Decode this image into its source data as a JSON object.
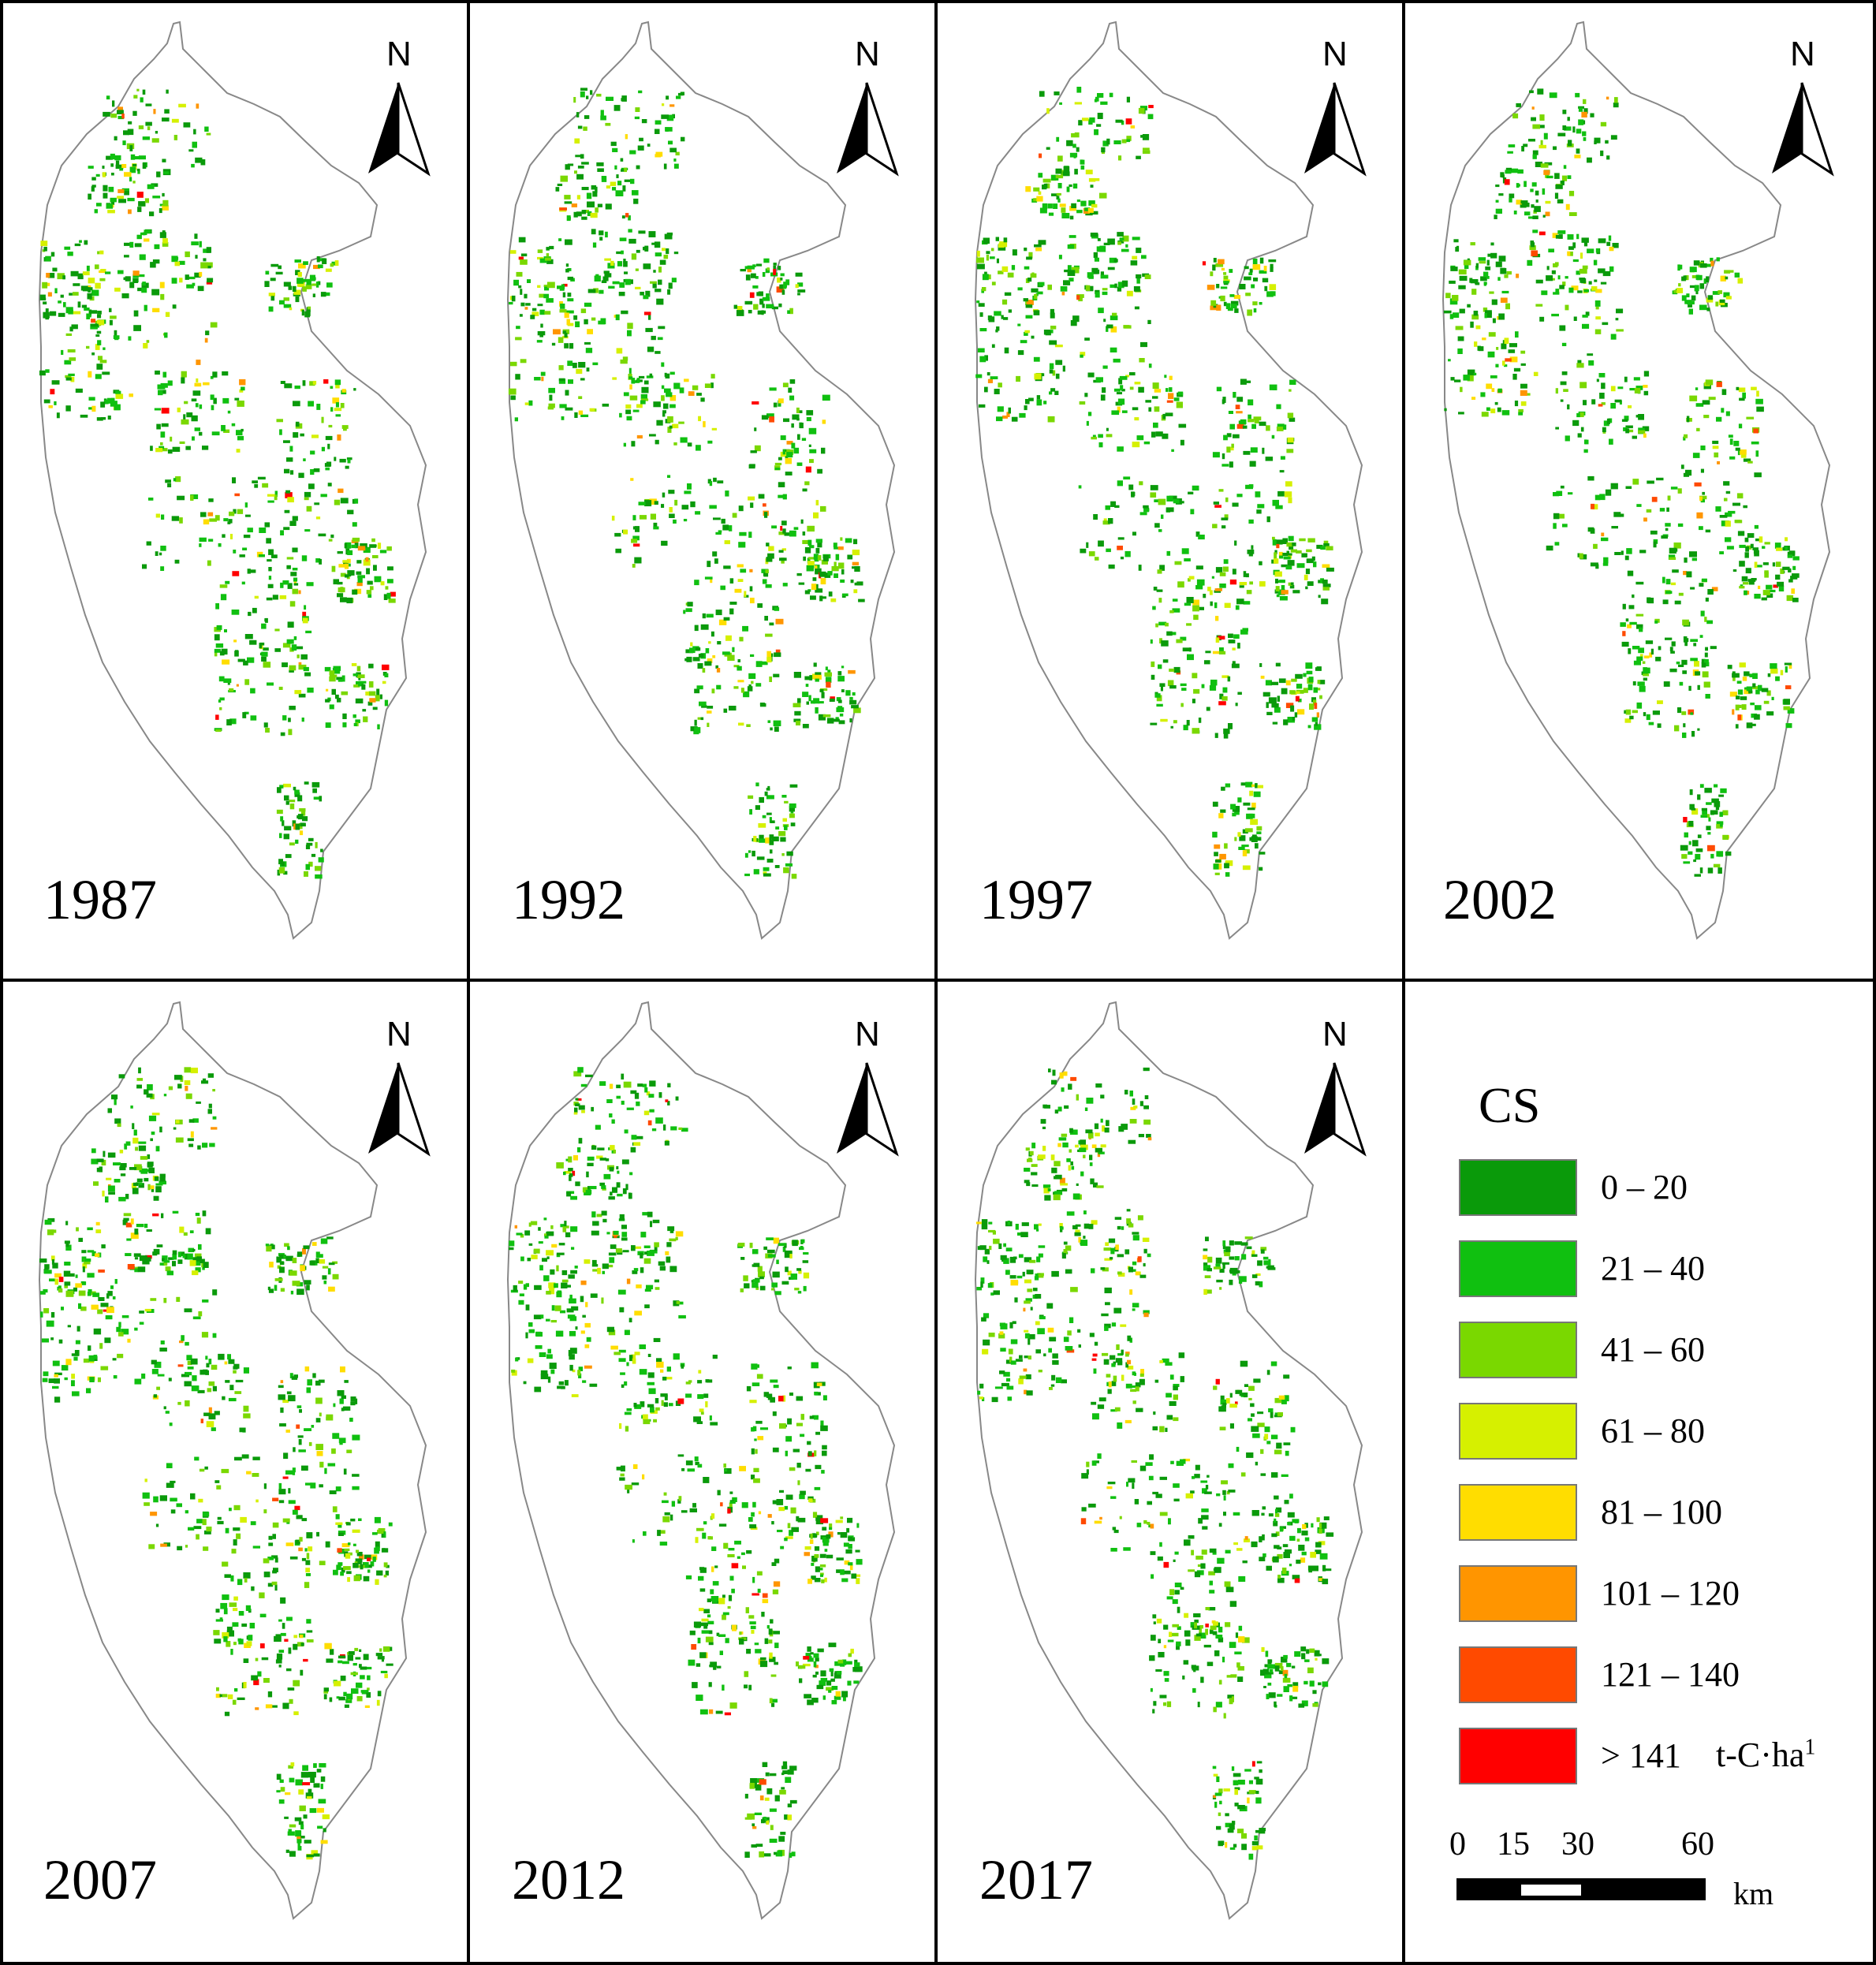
{
  "panels": [
    {
      "year": "1987"
    },
    {
      "year": "1992"
    },
    {
      "year": "1997"
    },
    {
      "year": "2002"
    },
    {
      "year": "2007"
    },
    {
      "year": "2012"
    },
    {
      "year": "2017"
    }
  ],
  "north_arrow": {
    "label": "N",
    "icon": "north-arrow-icon"
  },
  "legend": {
    "title": "CS",
    "classes": [
      {
        "label": "0 – 20",
        "color": "#0a9a0a"
      },
      {
        "label": "21 – 40",
        "color": "#10c010"
      },
      {
        "label": "41 – 60",
        "color": "#7ad800"
      },
      {
        "label": "61 – 80",
        "color": "#d6f000"
      },
      {
        "label": "81 – 100",
        "color": "#ffdd00"
      },
      {
        "label": "101 – 120",
        "color": "#ff9500"
      },
      {
        "label": "121 – 140",
        "color": "#ff4a00"
      },
      {
        "label": "> 141",
        "color": "#ff0000"
      }
    ],
    "unit": "t-C·ha",
    "unit_superscript": "1"
  },
  "scale_bar": {
    "ticks": [
      "0",
      "15",
      "30",
      "60"
    ],
    "unit": "km"
  }
}
